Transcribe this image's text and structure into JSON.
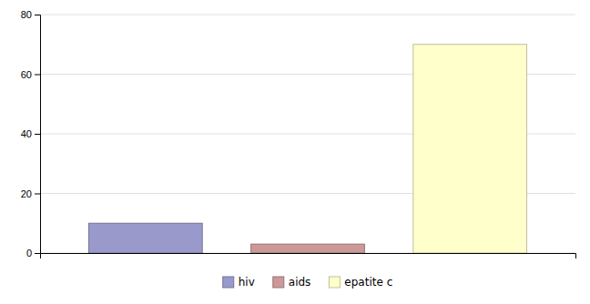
{
  "chart_data": {
    "type": "bar",
    "categories": [
      "hiv",
      "aids",
      "epatite c"
    ],
    "values": [
      10,
      3,
      70
    ],
    "colors": [
      "#9999cc",
      "#cc9999",
      "#ffffcc"
    ],
    "ylim": [
      0,
      80
    ],
    "yticks": [
      0,
      20,
      40,
      60,
      80
    ],
    "grid": true,
    "legend": "bottom",
    "tick_labels": "y"
  }
}
